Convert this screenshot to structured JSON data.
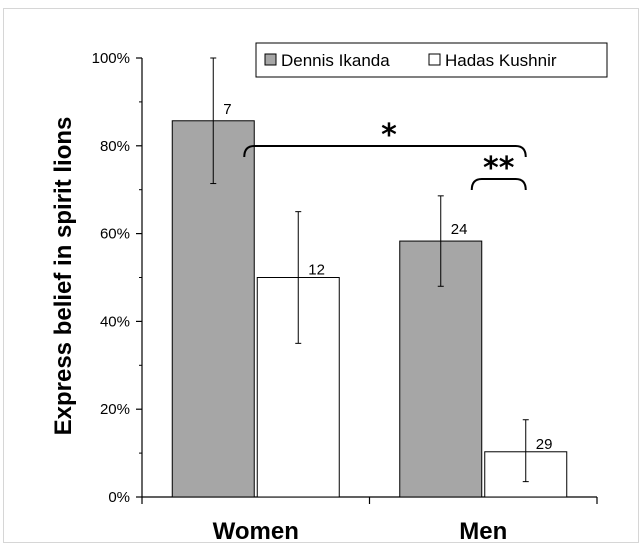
{
  "chart_data": {
    "type": "bar",
    "categories": [
      "Women",
      "Men"
    ],
    "series": [
      {
        "name": "Dennis Ikanda",
        "values": [
          85.7,
          58.3
        ],
        "err_low": [
          71.4,
          48.0
        ],
        "err_high": [
          100,
          68.6
        ],
        "n": [
          "7",
          "24"
        ],
        "color": "#a6a6a6"
      },
      {
        "name": "Hadas Kushnir",
        "values": [
          50.0,
          10.3
        ],
        "err_low": [
          35.0,
          3.5
        ],
        "err_high": [
          65.0,
          17.6
        ],
        "n": [
          "12",
          "29"
        ],
        "color": "#ffffff"
      }
    ],
    "ylabel": "Express belief in spirit lions",
    "xlabel": "",
    "ylim": [
      0,
      100
    ],
    "yticks": [
      "0%",
      "20%",
      "40%",
      "60%",
      "80%",
      "100%"
    ],
    "legend_position": "top-right",
    "significance": [
      {
        "label": "*",
        "from": "Women · Dennis Ikanda",
        "to": "Men · Hadas Kushnir"
      },
      {
        "label": "**",
        "from": "Men · Dennis Ikanda",
        "to": "Men · Hadas Kushnir"
      }
    ]
  }
}
